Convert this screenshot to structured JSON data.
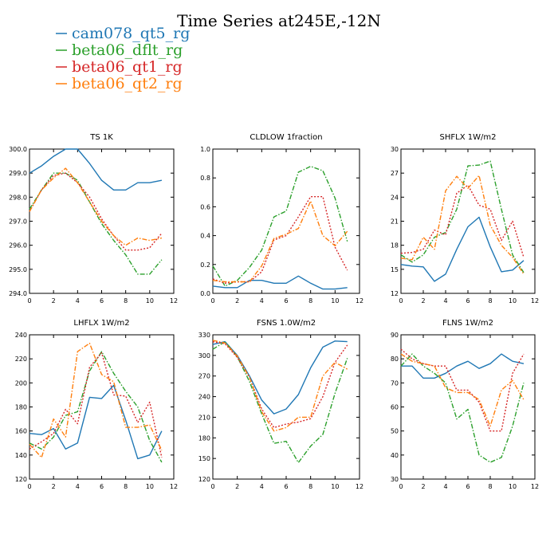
{
  "figure": {
    "title": "Time Series at245E,-12N"
  },
  "legend": [
    {
      "name": "cam078_qt5_rg",
      "color": "#1f77b4",
      "dash": "solid"
    },
    {
      "name": "beta06_dflt_rg",
      "color": "#2ca02c",
      "dash": "dashdot"
    },
    {
      "name": "beta06_qt1_rg",
      "color": "#d62728",
      "dash": "dot"
    },
    {
      "name": "beta06_qt2_rg",
      "color": "#ff7f0e",
      "dash": "dashdot"
    }
  ],
  "chart_data": [
    {
      "type": "line",
      "title": "TS   1K",
      "x": [
        0,
        1,
        2,
        3,
        4,
        5,
        6,
        7,
        8,
        9,
        10,
        11
      ],
      "xlim": [
        0,
        12
      ],
      "xticks": [
        0,
        2,
        4,
        6,
        8,
        10,
        12
      ],
      "ylim": [
        294,
        300
      ],
      "yticks": [
        294,
        295,
        296,
        297,
        298,
        299,
        300
      ],
      "ytick_labels": [
        "294.0",
        "295.0",
        "296.0",
        "297.0",
        "298.0",
        "299.0",
        "300.0"
      ],
      "series": [
        {
          "name": "cam078_qt5_rg",
          "values": [
            299.0,
            299.3,
            299.7,
            300.0,
            300.0,
            299.4,
            298.7,
            298.3,
            298.3,
            298.6,
            298.6,
            298.7
          ]
        },
        {
          "name": "beta06_dflt_rg",
          "values": [
            297.5,
            298.3,
            299.0,
            299.0,
            298.7,
            297.8,
            296.9,
            296.2,
            295.6,
            294.8,
            294.8,
            295.4
          ]
        },
        {
          "name": "beta06_qt1_rg",
          "values": [
            297.4,
            298.3,
            298.9,
            299.0,
            298.6,
            298.0,
            297.1,
            296.4,
            295.8,
            295.8,
            295.9,
            296.5
          ]
        },
        {
          "name": "beta06_qt2_rg",
          "values": [
            297.4,
            298.3,
            298.8,
            299.2,
            298.6,
            297.8,
            297.0,
            296.4,
            296.0,
            296.3,
            296.2,
            296.3
          ]
        }
      ]
    },
    {
      "type": "line",
      "title": "CLDLOW   1fraction",
      "x": [
        0,
        1,
        2,
        3,
        4,
        5,
        6,
        7,
        8,
        9,
        10,
        11
      ],
      "xlim": [
        0,
        12
      ],
      "xticks": [
        0,
        2,
        4,
        6,
        8,
        10,
        12
      ],
      "ylim": [
        0,
        1
      ],
      "yticks": [
        0,
        0.2,
        0.4,
        0.6,
        0.8,
        1.0
      ],
      "ytick_labels": [
        "0.0",
        "0.2",
        "0.4",
        "0.6",
        "0.8",
        "1.0"
      ],
      "series": [
        {
          "name": "cam078_qt5_rg",
          "values": [
            0.05,
            0.04,
            0.04,
            0.09,
            0.09,
            0.07,
            0.07,
            0.12,
            0.07,
            0.03,
            0.03,
            0.04
          ]
        },
        {
          "name": "beta06_dflt_rg",
          "values": [
            0.19,
            0.05,
            0.09,
            0.18,
            0.3,
            0.53,
            0.57,
            0.84,
            0.88,
            0.85,
            0.66,
            0.36
          ]
        },
        {
          "name": "beta06_qt1_rg",
          "values": [
            0.1,
            0.07,
            0.08,
            0.08,
            0.15,
            0.37,
            0.4,
            0.53,
            0.67,
            0.67,
            0.32,
            0.16
          ]
        },
        {
          "name": "beta06_qt2_rg",
          "values": [
            0.09,
            0.08,
            0.08,
            0.08,
            0.19,
            0.38,
            0.41,
            0.45,
            0.64,
            0.4,
            0.33,
            0.43
          ]
        }
      ]
    },
    {
      "type": "line",
      "title": "SHFLX   1W/m2",
      "x": [
        0,
        1,
        2,
        3,
        4,
        5,
        6,
        7,
        8,
        9,
        10,
        11
      ],
      "xlim": [
        0,
        12
      ],
      "xticks": [
        0,
        2,
        4,
        6,
        8,
        10,
        12
      ],
      "ylim": [
        12,
        30
      ],
      "yticks": [
        12,
        15,
        18,
        21,
        24,
        27,
        30
      ],
      "ytick_labels": [
        "12",
        "15",
        "18",
        "21",
        "24",
        "27",
        "30"
      ],
      "series": [
        {
          "name": "cam078_qt5_rg",
          "values": [
            15.6,
            15.4,
            15.3,
            13.5,
            14.4,
            17.5,
            20.3,
            21.5,
            17.8,
            14.7,
            14.9,
            16.1
          ]
        },
        {
          "name": "beta06_dflt_rg",
          "values": [
            16.8,
            15.9,
            16.8,
            19.0,
            19.6,
            22.5,
            27.9,
            28.0,
            28.5,
            22.5,
            16.8,
            14.6
          ]
        },
        {
          "name": "beta06_qt1_rg",
          "values": [
            17.0,
            17.1,
            17.5,
            19.9,
            19.3,
            24.5,
            25.5,
            23.0,
            22.5,
            18.6,
            21.0,
            16.5
          ]
        },
        {
          "name": "beta06_qt2_rg",
          "values": [
            16.4,
            16.2,
            19.0,
            17.5,
            24.8,
            26.6,
            25.1,
            26.7,
            20.5,
            18.0,
            16.5,
            14.4
          ]
        }
      ]
    },
    {
      "type": "line",
      "title": "LHFLX   1W/m2",
      "x": [
        0,
        1,
        2,
        3,
        4,
        5,
        6,
        7,
        8,
        9,
        10,
        11
      ],
      "xlim": [
        0,
        12
      ],
      "xticks": [
        0,
        2,
        4,
        6,
        8,
        10,
        12
      ],
      "ylim": [
        120,
        240
      ],
      "yticks": [
        120,
        140,
        160,
        180,
        200,
        220,
        240
      ],
      "ytick_labels": [
        "120",
        "140",
        "160",
        "180",
        "200",
        "220",
        "240"
      ],
      "series": [
        {
          "name": "cam078_qt5_rg",
          "values": [
            158,
            157,
            162,
            145,
            150,
            188,
            187,
            198,
            169,
            137,
            140,
            160
          ]
        },
        {
          "name": "beta06_dflt_rg",
          "values": [
            150,
            145,
            155,
            173,
            176,
            210,
            226,
            208,
            193,
            180,
            152,
            134
          ]
        },
        {
          "name": "beta06_qt1_rg",
          "values": [
            145,
            151,
            158,
            178,
            166,
            213,
            225,
            190,
            189,
            167,
            184,
            138
          ]
        },
        {
          "name": "beta06_qt2_rg",
          "values": [
            149,
            138,
            170,
            155,
            226,
            233,
            207,
            201,
            163,
            163,
            165,
            144
          ]
        }
      ]
    },
    {
      "type": "line",
      "title": "FSNS   1.0W/m2",
      "x": [
        0,
        1,
        2,
        3,
        4,
        5,
        6,
        7,
        8,
        9,
        10,
        11
      ],
      "xlim": [
        0,
        12
      ],
      "xticks": [
        0,
        2,
        4,
        6,
        8,
        10,
        12
      ],
      "ylim": [
        120,
        330
      ],
      "yticks": [
        120,
        150,
        180,
        210,
        240,
        270,
        300,
        330
      ],
      "ytick_labels": [
        "120",
        "150",
        "180",
        "210",
        "240",
        "270",
        "300",
        "330"
      ],
      "series": [
        {
          "name": "cam078_qt5_rg",
          "values": [
            316,
            320,
            300,
            270,
            235,
            215,
            222,
            243,
            282,
            312,
            321,
            320
          ]
        },
        {
          "name": "beta06_dflt_rg",
          "values": [
            309,
            320,
            298,
            262,
            215,
            172,
            175,
            144,
            168,
            185,
            245,
            296
          ]
        },
        {
          "name": "beta06_qt1_rg",
          "values": [
            320,
            317,
            297,
            268,
            222,
            195,
            200,
            203,
            208,
            240,
            290,
            315
          ]
        },
        {
          "name": "beta06_qt2_rg",
          "values": [
            322,
            318,
            299,
            268,
            218,
            190,
            195,
            210,
            210,
            270,
            290,
            280
          ]
        }
      ]
    },
    {
      "type": "line",
      "title": "FLNS   1W/m2",
      "x": [
        0,
        1,
        2,
        3,
        4,
        5,
        6,
        7,
        8,
        9,
        10,
        11
      ],
      "xlim": [
        0,
        12
      ],
      "xticks": [
        0,
        2,
        4,
        6,
        8,
        10,
        12
      ],
      "ylim": [
        30,
        90
      ],
      "yticks": [
        30,
        40,
        50,
        60,
        70,
        80,
        90
      ],
      "ytick_labels": [
        "30",
        "40",
        "50",
        "60",
        "70",
        "80",
        "90"
      ],
      "series": [
        {
          "name": "cam078_qt5_rg",
          "values": [
            77,
            77,
            72,
            72,
            74,
            77,
            79,
            76,
            78,
            82,
            79,
            78
          ]
        },
        {
          "name": "beta06_dflt_rg",
          "values": [
            77,
            82,
            77,
            74,
            70,
            55,
            59,
            40,
            37,
            39,
            52,
            70
          ]
        },
        {
          "name": "beta06_qt1_rg",
          "values": [
            84,
            80,
            78,
            77,
            77,
            67,
            67,
            62,
            50,
            50,
            74,
            82
          ]
        },
        {
          "name": "beta06_qt2_rg",
          "values": [
            82,
            79,
            78,
            77,
            68,
            66,
            66,
            63,
            52,
            67,
            71,
            63
          ]
        }
      ]
    }
  ]
}
